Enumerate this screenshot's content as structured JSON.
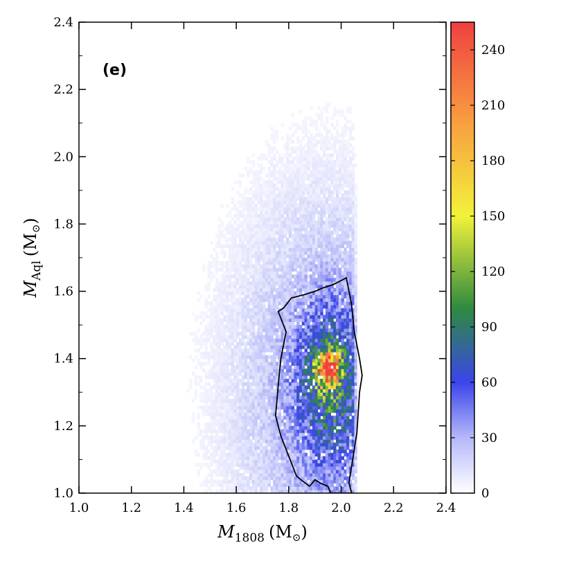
{
  "chart_data": {
    "type": "heatmap",
    "panel_label": "(e)",
    "xlabel": {
      "symbol": "M",
      "subscript": "1808",
      "unit": "(M",
      "unit_sub": "⊙",
      "unit_close": ")"
    },
    "ylabel": {
      "symbol": "M",
      "subscript": "Aql",
      "unit": "(M",
      "unit_sub": "⊙",
      "unit_close": ")"
    },
    "xlim": [
      1.0,
      2.4
    ],
    "ylim": [
      1.0,
      2.4
    ],
    "xticks": [
      "1.0",
      "1.2",
      "1.4",
      "1.6",
      "1.8",
      "2.0",
      "2.2",
      "2.4"
    ],
    "yticks": [
      "1.0",
      "1.2",
      "1.4",
      "1.6",
      "1.8",
      "2.0",
      "2.2",
      "2.4"
    ],
    "grid": false,
    "colorbar": {
      "range": [
        0,
        255
      ],
      "ticks": [
        "0",
        "30",
        "60",
        "90",
        "120",
        "150",
        "180",
        "210",
        "240"
      ],
      "colors": [
        {
          "v": 0,
          "c": "#ffffff"
        },
        {
          "v": 30,
          "c": "#b4b8f8"
        },
        {
          "v": 60,
          "c": "#3b45ea"
        },
        {
          "v": 100,
          "c": "#2e8a3f"
        },
        {
          "v": 150,
          "c": "#f2f23a"
        },
        {
          "v": 200,
          "c": "#f8a040"
        },
        {
          "v": 255,
          "c": "#f04040"
        }
      ]
    },
    "peak": {
      "x": 1.95,
      "y": 1.37,
      "value": 250
    },
    "contour": [
      [
        1.88,
        1.02
      ],
      [
        1.83,
        1.05
      ],
      [
        1.8,
        1.11
      ],
      [
        1.77,
        1.17
      ],
      [
        1.75,
        1.23
      ],
      [
        1.76,
        1.32
      ],
      [
        1.77,
        1.4
      ],
      [
        1.79,
        1.48
      ],
      [
        1.77,
        1.52
      ],
      [
        1.76,
        1.54
      ],
      [
        1.78,
        1.55
      ],
      [
        1.81,
        1.58
      ],
      [
        1.86,
        1.59
      ],
      [
        1.9,
        1.6
      ],
      [
        1.93,
        1.61
      ],
      [
        1.97,
        1.62
      ],
      [
        2.02,
        1.64
      ],
      [
        2.04,
        1.56
      ],
      [
        2.05,
        1.48
      ],
      [
        2.07,
        1.4
      ],
      [
        2.08,
        1.35
      ],
      [
        2.07,
        1.3
      ],
      [
        2.06,
        1.18
      ],
      [
        2.04,
        1.08
      ],
      [
        2.03,
        1.03
      ],
      [
        2.04,
        1.0
      ],
      [
        1.96,
        1.0
      ],
      [
        1.95,
        1.02
      ],
      [
        1.92,
        1.03
      ],
      [
        1.9,
        1.04
      ],
      [
        1.88,
        1.02
      ]
    ]
  }
}
